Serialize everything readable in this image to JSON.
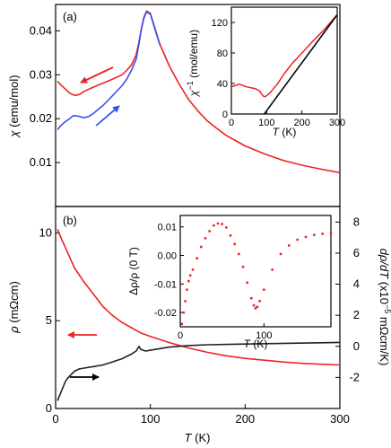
{
  "chart_data": [
    {
      "id": "a-main",
      "type": "line",
      "panel_label": "(a)",
      "ylabel_sym": "χ",
      "ylabel_unit": " (emu/mol)",
      "xlim": [
        0,
        300
      ],
      "ylim": [
        0.0,
        0.046
      ],
      "yticks": [
        "0.01",
        "0.02",
        "0.03",
        "0.04"
      ],
      "ytick_values": [
        0.01,
        0.02,
        0.03,
        0.04
      ],
      "series": [
        {
          "color": "#ee2222",
          "x": [
            2,
            5,
            10,
            15,
            20,
            25,
            30,
            40,
            50,
            60,
            70,
            75,
            80,
            85,
            88,
            90,
            93,
            96,
            100,
            105,
            110,
            120,
            130,
            140,
            150,
            160,
            170,
            180,
            200,
            220,
            240,
            260,
            280,
            300
          ],
          "y": [
            0.0285,
            0.0278,
            0.0268,
            0.0258,
            0.0253,
            0.0255,
            0.0262,
            0.0272,
            0.0281,
            0.029,
            0.03,
            0.031,
            0.0322,
            0.0345,
            0.0375,
            0.04,
            0.043,
            0.0445,
            0.044,
            0.0405,
            0.037,
            0.032,
            0.028,
            0.0245,
            0.0218,
            0.0195,
            0.0178,
            0.0162,
            0.0138,
            0.012,
            0.0105,
            0.0094,
            0.0085,
            0.0077
          ]
        },
        {
          "color": "#3355ee",
          "x": [
            2,
            5,
            10,
            15,
            18,
            20,
            25,
            30,
            35,
            40,
            50,
            60,
            70,
            75,
            80,
            85,
            88,
            90,
            93,
            96,
            100,
            105,
            110
          ],
          "y": [
            0.0175,
            0.0183,
            0.0193,
            0.02,
            0.0206,
            0.0207,
            0.0205,
            0.0202,
            0.0205,
            0.0212,
            0.023,
            0.0252,
            0.0275,
            0.029,
            0.031,
            0.0335,
            0.037,
            0.0398,
            0.0428,
            0.0443,
            0.0438,
            0.0403,
            0.0368
          ]
        }
      ]
    },
    {
      "id": "a-inset",
      "type": "line",
      "ylabel_sym": "χ",
      "ylabel_sup": "−1",
      "ylabel_unit": " (mol/emu)",
      "xlabel_sym": "T",
      "xlabel_unit": " (K)",
      "xlim": [
        0,
        300
      ],
      "ylim": [
        0,
        140
      ],
      "xticks": [
        "0",
        "100",
        "200",
        "300"
      ],
      "xtick_values": [
        0,
        100,
        200,
        300
      ],
      "yticks": [
        "0",
        "40",
        "80",
        "120"
      ],
      "ytick_values": [
        0,
        40,
        80,
        120
      ],
      "series": [
        {
          "color": "#ee2222",
          "x": [
            2,
            10,
            20,
            30,
            40,
            50,
            60,
            70,
            80,
            88,
            92,
            96,
            100,
            110,
            130,
            150,
            170,
            200,
            230,
            260,
            300
          ],
          "y": [
            36,
            37,
            39,
            38,
            36,
            35,
            34,
            33,
            30,
            25,
            23,
            23,
            24,
            28,
            39,
            53,
            65,
            80,
            95,
            109,
            130
          ]
        },
        {
          "color": "#000000",
          "x": [
            93,
            300
          ],
          "y": [
            0,
            130
          ]
        }
      ]
    },
    {
      "id": "b-main",
      "type": "line",
      "panel_label": "(b)",
      "ylabel_sym": "ρ",
      "ylabel_unit": " (mΩcm)",
      "ylabel_right_sym": "dρ/dT",
      "ylabel_right_unit": " (x10",
      "ylabel_right_sup": "−5",
      "ylabel_right_unit2": " mΩcm/K)",
      "xlabel_sym": "T",
      "xlabel_unit": " (K)",
      "xlim": [
        0,
        300
      ],
      "ylim": [
        0,
        11.5
      ],
      "ylim_right": [
        -4,
        9
      ],
      "xticks": [
        "0",
        "100",
        "200",
        "300"
      ],
      "xtick_values": [
        0,
        100,
        200,
        300
      ],
      "yticks": [
        "0",
        "5",
        "10"
      ],
      "ytick_values": [
        0,
        5,
        10
      ],
      "yticks_right": [
        "-2",
        "0",
        "2",
        "4",
        "6",
        "8"
      ],
      "ytick_values_right": [
        -2,
        0,
        2,
        4,
        6,
        8
      ],
      "series": [
        {
          "color": "#ee2222",
          "axis": "left",
          "x": [
            2,
            5,
            10,
            15,
            20,
            30,
            40,
            50,
            60,
            70,
            80,
            90,
            100,
            120,
            140,
            160,
            180,
            200,
            220,
            240,
            260,
            280,
            300
          ],
          "y": [
            10.2,
            9.8,
            9.2,
            8.6,
            8.0,
            7.2,
            6.5,
            5.8,
            5.3,
            4.9,
            4.6,
            4.3,
            4.1,
            3.75,
            3.45,
            3.2,
            3.0,
            2.85,
            2.75,
            2.65,
            2.57,
            2.52,
            2.48
          ]
        },
        {
          "color": "#222222",
          "axis": "right",
          "x": [
            2,
            4,
            6,
            8,
            10,
            12,
            15,
            20,
            25,
            30,
            40,
            50,
            60,
            70,
            80,
            85,
            88,
            90,
            95,
            100,
            120,
            140,
            160,
            200,
            250,
            300
          ],
          "y": [
            -3.5,
            -3.2,
            -2.9,
            -2.6,
            -2.3,
            -2.1,
            -1.9,
            -1.6,
            -1.45,
            -1.4,
            -1.3,
            -1.2,
            -1.0,
            -0.8,
            -0.5,
            -0.3,
            0.0,
            -0.2,
            -0.3,
            -0.25,
            -0.05,
            0.05,
            0.1,
            0.15,
            0.2,
            0.25
          ]
        }
      ]
    },
    {
      "id": "b-inset",
      "type": "scatter",
      "ylabel_text": "Δρ/ρ (0 T)",
      "xlabel_sym": "T",
      "xlabel_unit": " (K)",
      "xlim": [
        0,
        180
      ],
      "ylim": [
        -0.025,
        0.014
      ],
      "xticks": [
        "0",
        "100"
      ],
      "xtick_values": [
        0,
        100
      ],
      "yticks": [
        "0.01",
        "0.00",
        "-0.01",
        "-0.02"
      ],
      "ytick_values": [
        0.01,
        0.0,
        -0.01,
        -0.02
      ],
      "series": [
        {
          "color": "#ee2222",
          "x": [
            2,
            4,
            6,
            8,
            10,
            12,
            15,
            20,
            25,
            30,
            35,
            40,
            45,
            50,
            55,
            60,
            65,
            70,
            75,
            80,
            85,
            88,
            90,
            92,
            95,
            100,
            110,
            120,
            130,
            140,
            150,
            160,
            170,
            180
          ],
          "y": [
            -0.024,
            -0.02,
            -0.016,
            -0.012,
            -0.009,
            -0.007,
            -0.005,
            -0.001,
            0.003,
            0.006,
            0.0085,
            0.0105,
            0.0112,
            0.011,
            0.0098,
            0.007,
            0.004,
            0.0005,
            -0.004,
            -0.0095,
            -0.015,
            -0.0175,
            -0.0185,
            -0.018,
            -0.016,
            -0.012,
            -0.005,
            0.0005,
            0.0035,
            0.0055,
            0.0065,
            0.0072,
            0.0076,
            0.0078
          ]
        }
      ]
    }
  ]
}
